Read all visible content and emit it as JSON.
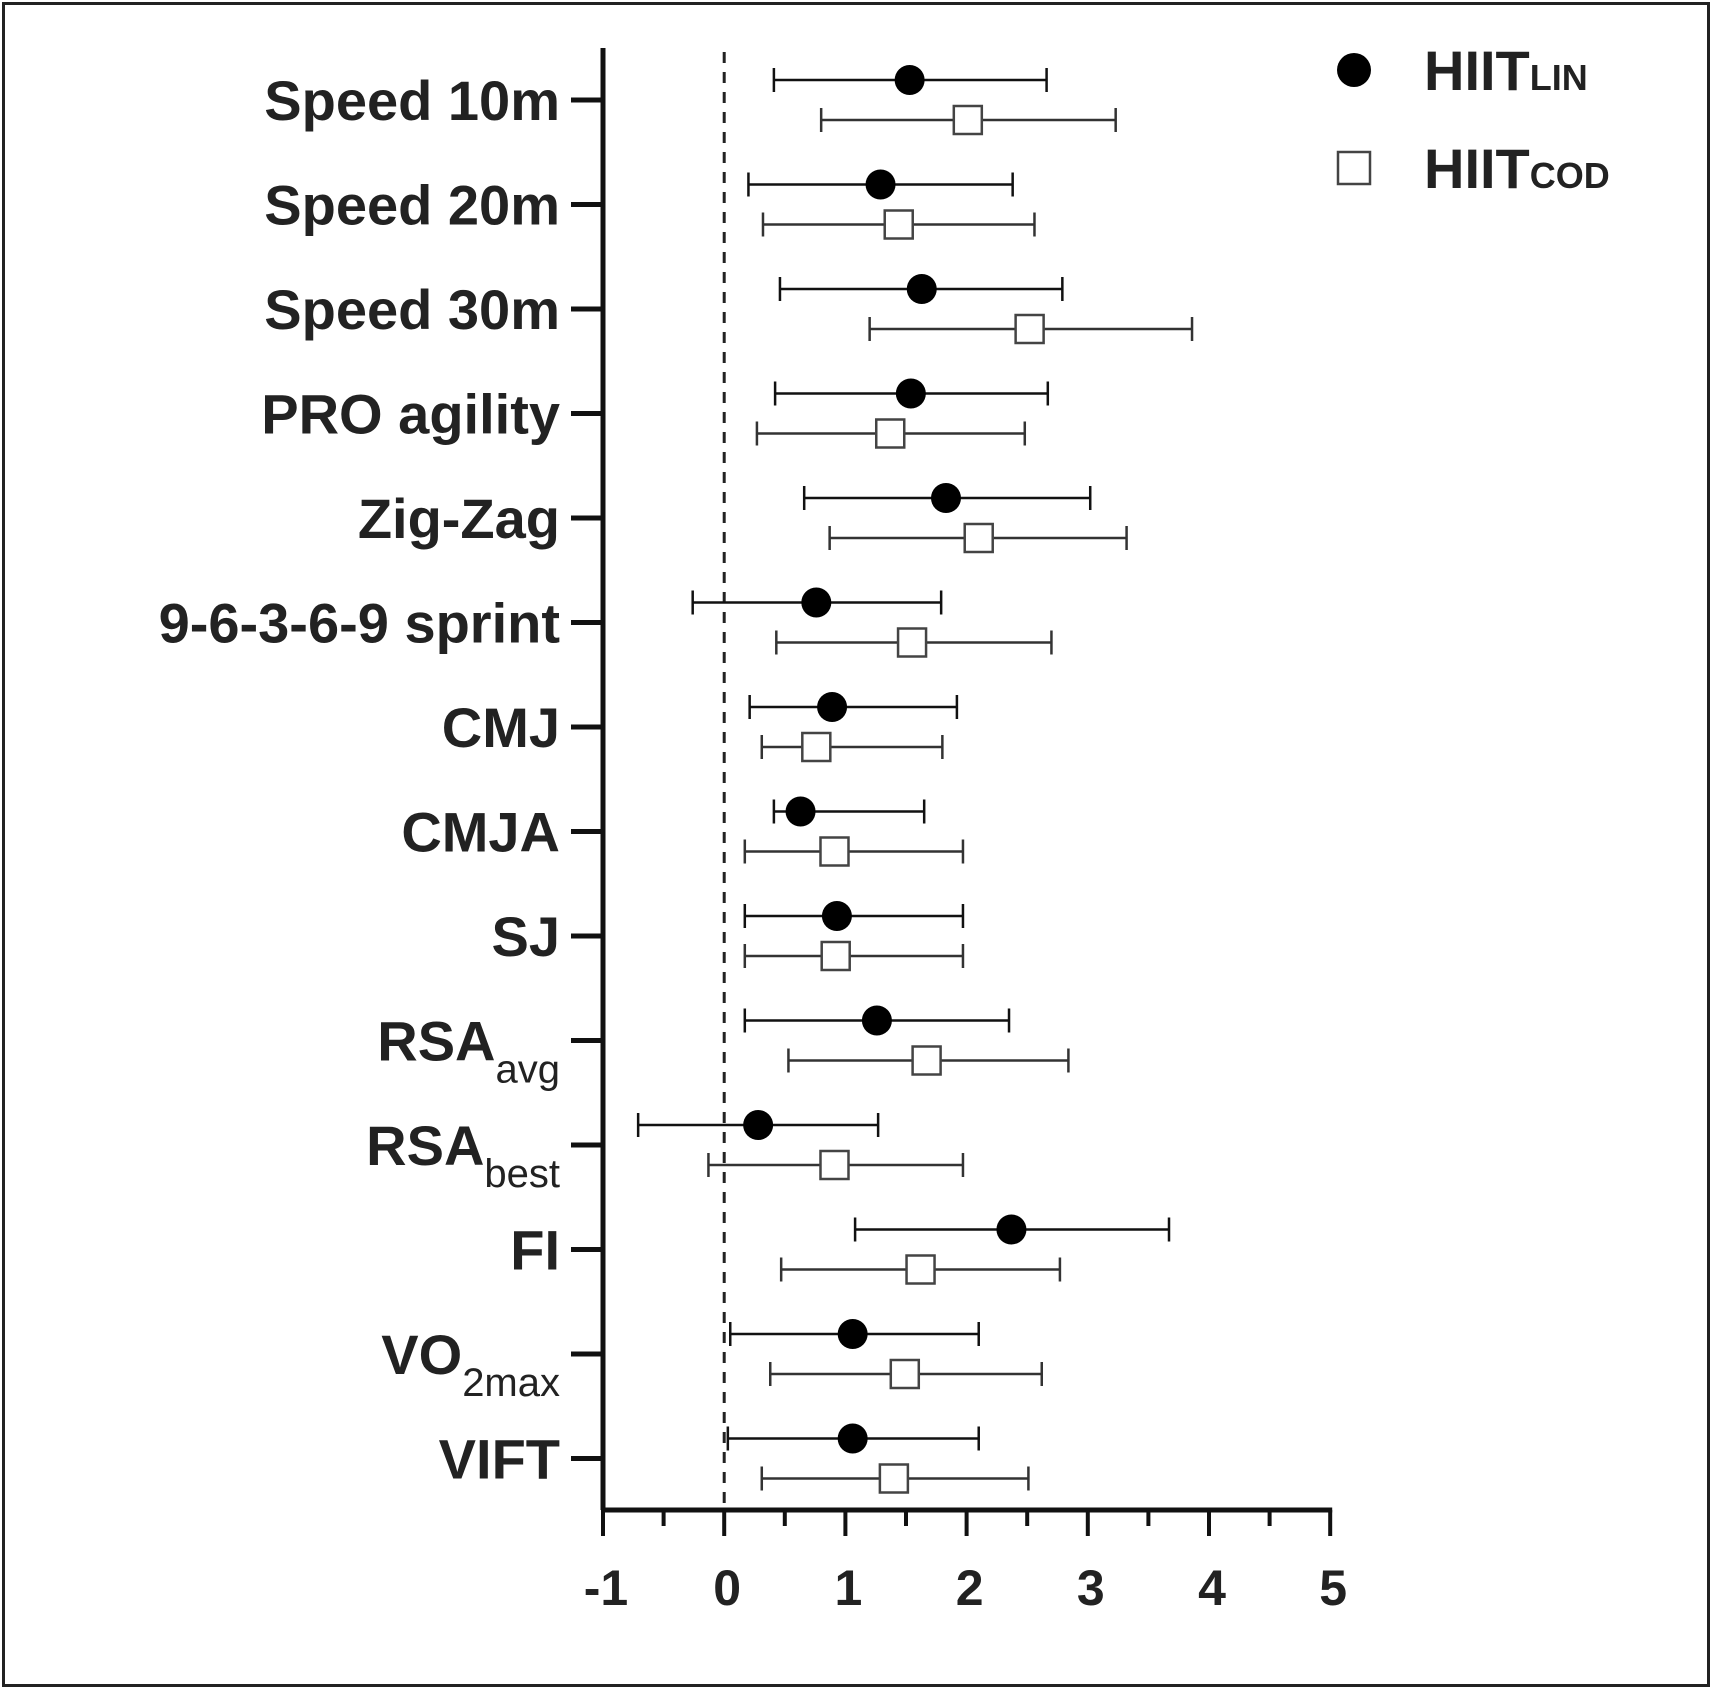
{
  "chart_data": {
    "type": "forest",
    "title": "",
    "xlabel": "",
    "ylabel": "",
    "xlim": [
      -1,
      5
    ],
    "xticks": [
      "-1",
      "0",
      "1",
      "2",
      "3",
      "4",
      "5"
    ],
    "reference_line": 0,
    "legend_position": "top-right",
    "categories": [
      {
        "main": "Speed 10m",
        "sub": ""
      },
      {
        "main": "Speed 20m",
        "sub": ""
      },
      {
        "main": "Speed 30m",
        "sub": ""
      },
      {
        "main": "PRO agility",
        "sub": ""
      },
      {
        "main": "Zig-Zag",
        "sub": ""
      },
      {
        "main": "9-6-3-6-9 sprint",
        "sub": ""
      },
      {
        "main": "CMJ",
        "sub": ""
      },
      {
        "main": "CMJA",
        "sub": ""
      },
      {
        "main": "SJ",
        "sub": ""
      },
      {
        "main": "RSA",
        "sub": "avg"
      },
      {
        "main": "RSA",
        "sub": "best"
      },
      {
        "main": "FI",
        "sub": ""
      },
      {
        "main": "VO",
        "sub": "2max"
      },
      {
        "main": "VIFT",
        "sub": ""
      }
    ],
    "series": [
      {
        "name_main": "HIIT",
        "name_sub": "LIN",
        "marker": "filled-circle",
        "color": "#000000",
        "values": [
          1.53,
          1.29,
          1.63,
          1.54,
          1.83,
          0.76,
          0.89,
          0.63,
          0.93,
          1.26,
          0.28,
          2.37,
          1.06,
          1.06
        ],
        "lower": [
          0.41,
          0.2,
          0.46,
          0.42,
          0.66,
          -0.26,
          0.21,
          0.41,
          0.17,
          0.17,
          -0.71,
          1.08,
          0.05,
          0.03
        ],
        "upper": [
          2.66,
          2.38,
          2.79,
          2.67,
          3.02,
          1.79,
          1.92,
          1.65,
          1.97,
          2.35,
          1.27,
          3.67,
          2.1,
          2.1
        ]
      },
      {
        "name_main": "HIIT",
        "name_sub": "COD",
        "marker": "open-square",
        "color": "#000000",
        "values": [
          2.01,
          1.44,
          2.52,
          1.37,
          2.1,
          1.55,
          0.76,
          0.91,
          0.92,
          1.67,
          0.91,
          1.62,
          1.49,
          1.4
        ],
        "lower": [
          0.8,
          0.32,
          1.2,
          0.27,
          0.87,
          0.43,
          0.31,
          0.17,
          0.17,
          0.53,
          -0.13,
          0.47,
          0.38,
          0.31
        ],
        "upper": [
          3.23,
          2.56,
          3.86,
          2.48,
          3.32,
          2.7,
          1.8,
          1.97,
          1.97,
          2.84,
          1.97,
          2.77,
          2.62,
          2.51
        ]
      }
    ]
  }
}
